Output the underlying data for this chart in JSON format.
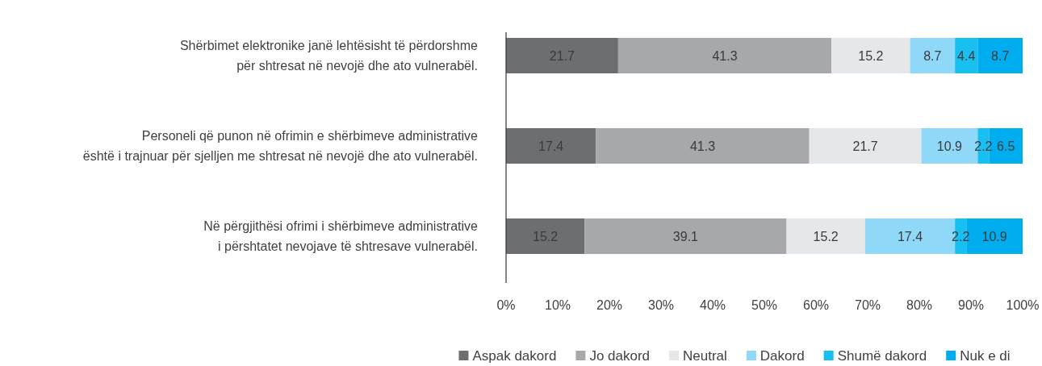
{
  "chart_data": {
    "type": "bar",
    "orientation": "horizontal",
    "stacked": true,
    "categories": [
      "Shërbimet elektronike janë lehtësisht të përdorshme\npër shtresat në nevojë dhe ato vulnerabël.",
      "Personeli që punon në ofrimin e shërbimeve administrative\nështë i trajnuar për sjelljen me shtresat në nevojë dhe ato vulnerabël.",
      "Në përgjithësi ofrimi i shërbimeve administrative\ni përshtatet nevojave të shtresave vulnerabël."
    ],
    "series": [
      {
        "name": "Aspak dakord",
        "color": "#6d6e72",
        "values": [
          21.7,
          17.4,
          15.2
        ]
      },
      {
        "name": "Jo dakord",
        "color": "#a7a8ab",
        "values": [
          41.3,
          41.3,
          39.1
        ]
      },
      {
        "name": "Neutral",
        "color": "#e6e7e8",
        "values": [
          15.2,
          21.7,
          15.2
        ]
      },
      {
        "name": "Dakord",
        "color": "#8fd8f7",
        "values": [
          8.7,
          10.9,
          17.4
        ]
      },
      {
        "name": "Shumë dakord",
        "color": "#17c0f1",
        "values": [
          4.4,
          2.2,
          2.2
        ]
      },
      {
        "name": "Nuk e di",
        "color": "#00aeef",
        "values": [
          8.7,
          6.5,
          10.9
        ]
      }
    ],
    "xlim": [
      0,
      100
    ],
    "xticks": [
      {
        "value": 0,
        "label": "0%"
      },
      {
        "value": 10,
        "label": "10%"
      },
      {
        "value": 20,
        "label": "20%"
      },
      {
        "value": 30,
        "label": "30%"
      },
      {
        "value": 40,
        "label": "40%"
      },
      {
        "value": 50,
        "label": "50%"
      },
      {
        "value": 60,
        "label": "60%"
      },
      {
        "value": 70,
        "label": "70%"
      },
      {
        "value": 80,
        "label": "80%"
      },
      {
        "value": 90,
        "label": "90%"
      },
      {
        "value": 100,
        "label": "100%"
      }
    ],
    "data_labels": true,
    "grid": false,
    "legend": "bottom"
  }
}
